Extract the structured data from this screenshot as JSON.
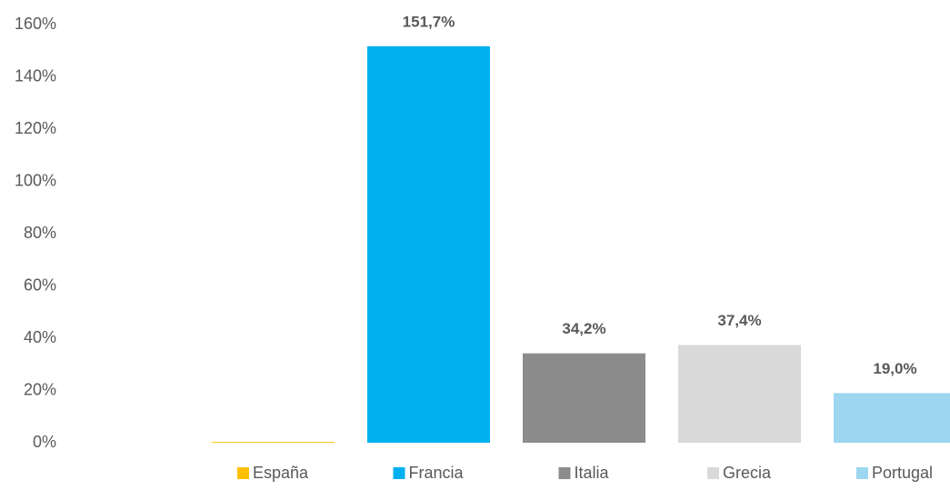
{
  "chart_data": {
    "type": "bar",
    "categories": [
      "España",
      "Francia",
      "Italia",
      "Grecia",
      "Portugal"
    ],
    "values": [
      0.3,
      151.7,
      34.2,
      37.4,
      19.0
    ],
    "value_labels": [
      null,
      "151,7%",
      "34,2%",
      "37,4%",
      "19,0%"
    ],
    "colors": [
      "#ffc000",
      "#00b0f0",
      "#8c8c8c",
      "#d9d9d9",
      "#9dd6ef"
    ],
    "ylim": [
      0,
      160
    ],
    "yticks": [
      {
        "value": 0,
        "label": "0%"
      },
      {
        "value": 20,
        "label": "20%"
      },
      {
        "value": 40,
        "label": "40%"
      },
      {
        "value": 60,
        "label": "60%"
      },
      {
        "value": 80,
        "label": "80%"
      },
      {
        "value": 100,
        "label": "100%"
      },
      {
        "value": 120,
        "label": "120%"
      },
      {
        "value": 140,
        "label": "140%"
      },
      {
        "value": 160,
        "label": "160%"
      }
    ],
    "grid": false
  }
}
